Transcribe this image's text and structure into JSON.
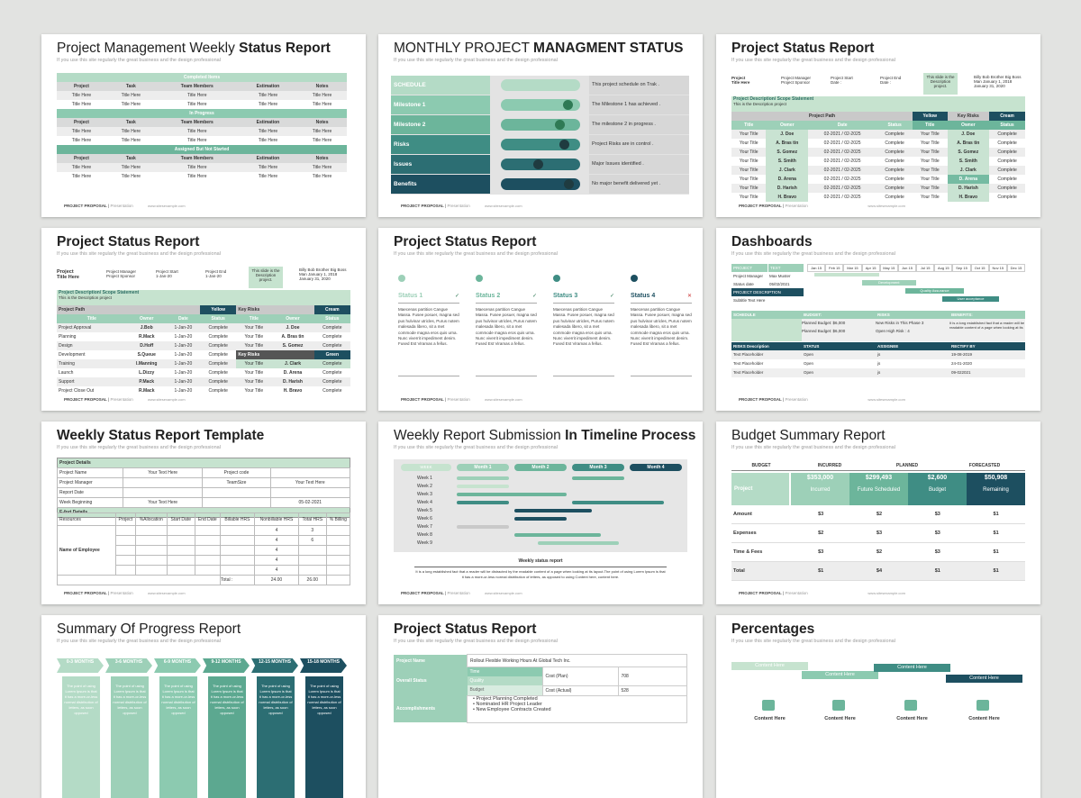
{
  "footer": {
    "brand": "PROJECT PROPOSAL",
    "sep": " | ",
    "type": "Presentation",
    "url": "www.sitesexample.com"
  },
  "subtitle": "If you use this site regularly the great business and the design professional",
  "s1": {
    "title_a": "Project Management Weekly ",
    "title_b": "Status Report",
    "sections": [
      "Completed Items",
      "In Progress",
      "Assigned But Not Started"
    ],
    "cols": [
      "Project",
      "Task",
      "Team Members",
      "Estimation",
      "Notes"
    ],
    "cell": "Title Here"
  },
  "s2": {
    "title_a": "MONTHLY PROJECT ",
    "title_b": "MANAGMENT STATUS",
    "rows": [
      {
        "label": "SCHEDULE",
        "text": "This project schedule on Trak ."
      },
      {
        "label": "Milestone 1",
        "text": "The Milestone 1 has achieved ."
      },
      {
        "label": "Milestone 2",
        "text": "The milestone 2 in progress ."
      },
      {
        "label": "Risks",
        "text": "Project Risks are in control ."
      },
      {
        "label": "Issues",
        "text": "Major Issues identified ."
      },
      {
        "label": "Benefits",
        "text": "No major benefit delivered yet ."
      }
    ],
    "progress": [
      0.0,
      0.92,
      0.82,
      0.88,
      0.55,
      0.93
    ]
  },
  "s3": {
    "title": "Project Status Report",
    "proj": "Project",
    "title_here": "Title Here",
    "pm": "Project Manager",
    "ps": "Project Sponsor",
    "start": "Project Start",
    "date": "Date :",
    "end": "Project End",
    "note": "This slide is the Description project.",
    "person": "Billy Bob Brother Big Boss",
    "person_date": "Man January 1, 2018",
    "person_date2": "January 31, 2020",
    "desc": "Project Description/ Scope Statement",
    "desc2": "This is the Description project",
    "path": "Project Path",
    "yellow": "Yellow",
    "keyrisks": "Key Risks",
    "cream": "Cream",
    "cols": [
      "Title",
      "Owner",
      "Date",
      "Status",
      "Title",
      "Owner",
      "Status"
    ],
    "owners": [
      "J. Doe",
      "A. Bras tin",
      "S. Gomez",
      "S. Smith",
      "J. Clark",
      "D. Arena",
      "D. Harish",
      "H. Bravo"
    ],
    "rowtitle": "Your Title",
    "daterange": "02-2021 / 02-2025",
    "complete": "Complete"
  },
  "s4": {
    "title": "Project Status Report",
    "proj": "Project",
    "title_here": "Title Here",
    "pm": "Project Manager",
    "ps": "Project Sponsor",
    "start": "Project Start",
    "date": "1-Jan-20",
    "end": "Project End",
    "note": "This slide is the Description project.",
    "person": "Billy Bob Brother Big Boss",
    "person_date": "Man January 1, 2018",
    "person_date2": "January 31, 2020",
    "desc": "Project Description/ Scope Statement",
    "desc2": "This is the Description project",
    "path": "Project Path",
    "yellow": "Yellow",
    "keyrisks": "Key Risks",
    "cream": "Cream",
    "risks2": "Key Risks",
    "green": "Green",
    "cols": [
      "Title",
      "Owner",
      "Date",
      "Status",
      "Title",
      "Owner",
      "Status"
    ],
    "rows": [
      {
        "t": "Project Approval",
        "o": "J.Bob"
      },
      {
        "t": "Planning",
        "o": "R.Mack"
      },
      {
        "t": "Design",
        "o": "D.Hoff"
      },
      {
        "t": "Development",
        "o": "S.Queue"
      },
      {
        "t": "Training",
        "o": "I.Manning"
      },
      {
        "t": "Launch",
        "o": "L.Dizzy"
      },
      {
        "t": "Support",
        "o": "P.Mack"
      },
      {
        "t": "Project Close Out",
        "o": "R.Mack"
      }
    ],
    "right": [
      "J. Doe",
      "A. Bras tin",
      "S. Gomez",
      "",
      "J. Clark",
      "D. Arena",
      "D. Harish",
      "H. Bravo"
    ],
    "complete": "Complete",
    "yt": "Your Title"
  },
  "s5": {
    "title": "Project Status Report",
    "cards": [
      {
        "label": "Status 1"
      },
      {
        "label": "Status 2"
      },
      {
        "label": "Status 3"
      },
      {
        "label": "Status 4"
      }
    ],
    "body": "Maecenas partition Cangue Massa. Fusee posuer, magna sed pus hulvinar utricles, Purus notem malesada libero, sit a met commode magna eros quis urna. Nunc viverrit impediment denim. Fused Est Viramas a fellus."
  },
  "s6": {
    "title": "Dashboards",
    "project": "PROJECT",
    "text": "TEXT",
    "pm": "Project Manager",
    "pm_v": "Max Muster",
    "sd": "Status date",
    "sd_v": "05/02/2021",
    "pdesc": "PROJECT DESCRIPTION",
    "subtitle": "Subtitle Text Here",
    "months": [
      "Jan 15",
      "Feb 15",
      "Mar 15",
      "Apr 15",
      "May 15",
      "Jun 15",
      "Jul 15",
      "Aug 15",
      "Sep 15",
      "Oct 15",
      "Nov 15",
      "Dec 15"
    ],
    "gantt": [
      "Development",
      "Quality Assurance",
      "User acceptance"
    ],
    "schedule": "SCHEDULE",
    "budget": "BUDGET:",
    "risks": "RISKS",
    "benefits": "BENEFITS:",
    "pb1": "Planned  Budget: $6,000",
    "pb2": "Planned  Budget: $6,000",
    "nr1": "New Risks in This  Phase  3",
    "nr2": "Open High Risk : 4",
    "ben": "It is a long established fact that a reader will be readable content of a page when looking at its",
    "rd": "RISKS Description",
    "st": "STATUS",
    "as": "ASSIGNEE",
    "rb": "RECTIFY BY",
    "rrows": [
      {
        "a": "Text Placeholder",
        "b": "Open",
        "c": "js",
        "d": "19-08-2019"
      },
      {
        "a": "Text Placeholder",
        "b": "Open",
        "c": "js",
        "d": "24-01-2020"
      },
      {
        "a": "Text Placeholder",
        "b": "Open",
        "c": "js",
        "d": "09-022021"
      }
    ]
  },
  "s7": {
    "title": "Weekly Status Report Template",
    "pd": "Project Details",
    "pn": "Project Name",
    "pm": "Project Manager",
    "rd": "Report Date",
    "wb": "Week Beginning",
    "yth": "Your Text Here",
    "pc": "Project code",
    "ts": "TeamSize",
    "wbd": "05-02-2021",
    "ed": "E-fort Details",
    "cols": [
      "Resources",
      "Project",
      "%Allocation",
      "Start Date",
      "End Date",
      "Billable HRS",
      "Nonbillable HRS",
      "Total HRS",
      "% Billing"
    ],
    "emp": "Name of Employee",
    "nb": [
      "4",
      "4",
      "4",
      "4",
      "4"
    ],
    "th": [
      "3",
      "6",
      "",
      "",
      ""
    ],
    "total": "Total :",
    "tot_nb": "24.00",
    "tot_th": "26.00"
  },
  "s8": {
    "title_a": "Weekly Report Submission ",
    "title_b": "In Timeline Process",
    "week": "WEEK",
    "months": [
      "Month 1",
      "Month 2",
      "Month 3",
      "Month 4"
    ],
    "weeks": [
      "Week 1",
      "Week 2",
      "Week 3",
      "Week 4",
      "Week 5",
      "Week 6",
      "Week 7",
      "Week 8",
      "Week 9"
    ],
    "caption": "Weekly status report",
    "text": "It is a long established fact that a reader will be distracted by the readable content of a page when looking at its layout.The point of using Lorem Ipsum is that it has a more-or-less normal distribution of letters, as opposed to using Content here, content here."
  },
  "s9": {
    "title": "Budget Summary Report",
    "cols": [
      "BUDGET",
      "INCURRED",
      "PLANNED",
      "FORECASTED"
    ],
    "project": "Project",
    "vals": [
      "$353,000",
      "$299,493",
      "$2,600",
      "$50,908"
    ],
    "labels": [
      "Incurred",
      "Future Scheduled",
      "Budget",
      "Remaining"
    ],
    "rows": [
      {
        "n": "Amount",
        "v": [
          "$3",
          "$2",
          "$3",
          "$1"
        ]
      },
      {
        "n": "Expenses",
        "v": [
          "$2",
          "$3",
          "$3",
          "$1"
        ]
      },
      {
        "n": "Time & Fees",
        "v": [
          "$3",
          "$2",
          "$3",
          "$1"
        ]
      },
      {
        "n": "Total",
        "v": [
          "$1",
          "$4",
          "$1",
          "$1"
        ]
      }
    ]
  },
  "s10": {
    "title": "Summary Of Progress Report",
    "chevrons": [
      "0-3 MONTHS",
      "3-6 MONTHS",
      "6-9 MONTHS",
      "9-12 MONTHS",
      "12-15 MONTHS",
      "15-18 MONTHS"
    ],
    "body": "The point of using Lorem Ipsum is that it has a more-or-less normal distribution of letters, as soon opposed"
  },
  "s11": {
    "title": "Project Status Report",
    "pname": "Project Name",
    "pname_v": "Rollout Flexible Working Hours At Global Tech Inc.",
    "os": "Overall Status",
    "time": "Time",
    "quality": "Quality",
    "budget": "Budget",
    "cplan": "Cost (Plan)",
    "cplan_v": "708",
    "cact": "Cost (Actual)",
    "cact_v": "528",
    "acc": "Accomplishments",
    "items": [
      "Project Planning Completed",
      "Nominated HR Project Leader",
      "New Employee Contracts Created"
    ]
  },
  "s12": {
    "title": "Percentages",
    "content": "Content Here"
  }
}
